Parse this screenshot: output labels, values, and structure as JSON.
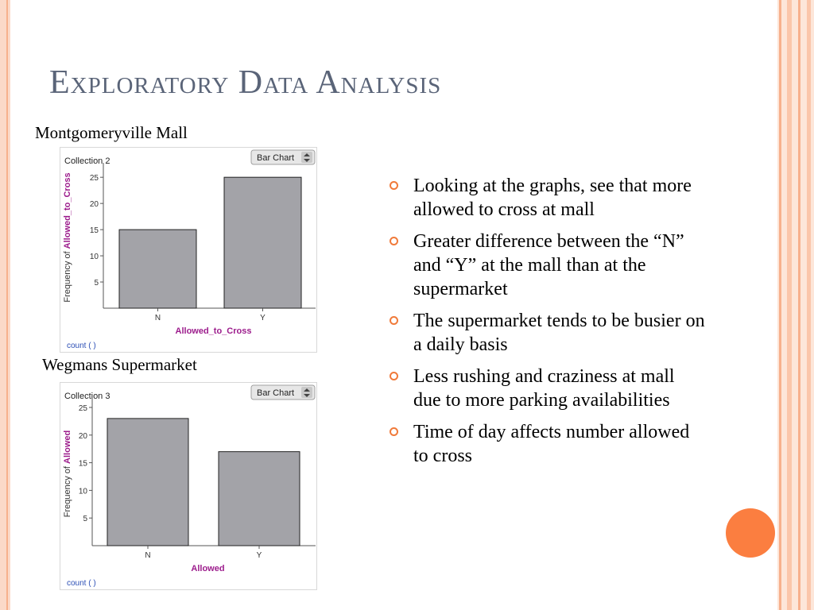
{
  "title": "Exploratory Data Analysis",
  "colors": {
    "accent": "#f07a3a",
    "title": "#5a6478",
    "bar_fill": "#a3a3a8",
    "axis_label": "#9c1c8c",
    "footer_link": "#2c4fb5"
  },
  "charts": {
    "mall": {
      "heading": "Montgomeryville Mall",
      "collection": "Collection 2",
      "chart_type_select": "Bar Chart",
      "footer": "count (  )",
      "ylabel_prefix": "Frequency of",
      "ylabel_var": "Allowed_to_Cross"
    },
    "supermarket": {
      "heading": "Wegmans Supermarket",
      "collection": "Collection 3",
      "chart_type_select": "Bar Chart",
      "footer": "count (  )",
      "ylabel_prefix": "Frequency of",
      "ylabel_var": "Allowed"
    }
  },
  "chart_data": [
    {
      "type": "bar",
      "title": "Collection 2",
      "categories": [
        "N",
        "Y"
      ],
      "values": [
        15,
        25
      ],
      "xlabel": "Allowed_to_Cross",
      "ylabel": "Frequency of Allowed_to_Cross",
      "ylim": [
        0,
        27
      ],
      "yticks": [
        5,
        10,
        15,
        20,
        25
      ]
    },
    {
      "type": "bar",
      "title": "Collection 3",
      "categories": [
        "N",
        "Y"
      ],
      "values": [
        23,
        17
      ],
      "xlabel": "Allowed",
      "ylabel": "Frequency of Allowed",
      "ylim": [
        0,
        26
      ],
      "yticks": [
        5,
        10,
        15,
        20,
        25
      ]
    }
  ],
  "bullets": [
    "Looking at the graphs, see that more allowed to cross at mall",
    "Greater difference between the “N” and “Y” at the mall than at the supermarket",
    "The supermarket tends to be busier on a daily basis",
    "Less rushing and craziness at mall due to more parking availabilities",
    "Time of day affects number allowed to cross"
  ]
}
